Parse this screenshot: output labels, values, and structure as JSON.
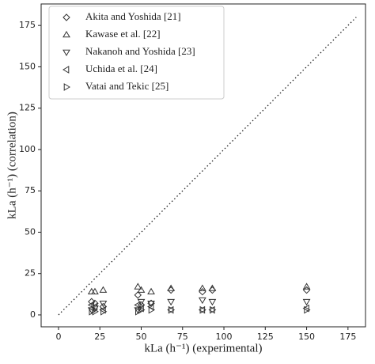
{
  "chart_data": {
    "type": "scatter",
    "xlabel": "kLa (h⁻¹) (experimental)",
    "ylabel": "kLa (h⁻¹) (correlation)",
    "xlim": [
      -10.5,
      185.6
    ],
    "ylim": [
      -7.2,
      188
    ],
    "xticks": [
      0,
      25,
      50,
      75,
      100,
      125,
      150,
      175
    ],
    "yticks": [
      0,
      25,
      50,
      75,
      100,
      125,
      150,
      175
    ],
    "grid": false,
    "legend": "upper left",
    "identity_line": {
      "x": [
        0,
        180
      ],
      "y": [
        0,
        180
      ]
    },
    "series": [
      {
        "name": "Akita and Yoshida [21]",
        "marker": "diamond",
        "color": "#333333",
        "x": [
          20,
          22,
          27,
          48,
          50,
          56,
          68,
          87,
          93,
          150
        ],
        "values": [
          8,
          7,
          5,
          12,
          6,
          7,
          15,
          14,
          15,
          15
        ]
      },
      {
        "name": "Kawase et al. [22]",
        "marker": "triangle-up",
        "color": "#333333",
        "x": [
          20,
          22,
          27,
          48,
          50,
          56,
          68,
          87,
          93,
          150
        ],
        "values": [
          14,
          14,
          15,
          17,
          15,
          14,
          16,
          16,
          16,
          17
        ]
      },
      {
        "name": "Nakanoh and Yoshida [23]",
        "marker": "triangle-down",
        "color": "#333333",
        "x": [
          20,
          22,
          27,
          48,
          50,
          56,
          68,
          87,
          93,
          150
        ],
        "values": [
          3,
          4,
          7,
          3,
          8,
          7,
          8,
          9,
          8,
          8
        ]
      },
      {
        "name": "Uchida et al. [24]",
        "marker": "triangle-left",
        "color": "#333333",
        "x": [
          20,
          22,
          27,
          48,
          50,
          56,
          68,
          87,
          93,
          150
        ],
        "values": [
          6,
          5,
          3,
          6,
          4,
          5,
          3,
          3,
          3,
          4
        ]
      },
      {
        "name": "Vatai and Tekic [25]",
        "marker": "triangle-right",
        "color": "#333333",
        "x": [
          20,
          22,
          27,
          48,
          50,
          56,
          68,
          87,
          93,
          150
        ],
        "values": [
          2,
          2,
          2,
          2,
          3,
          3,
          3,
          3,
          3,
          3
        ]
      }
    ]
  }
}
